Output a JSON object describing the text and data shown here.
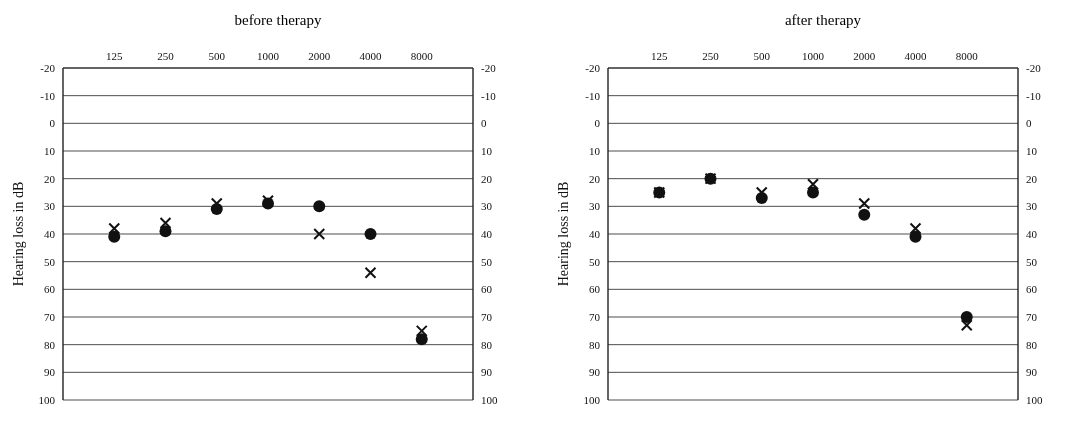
{
  "chart_data": [
    {
      "type": "scatter",
      "title": "before therapy",
      "ylabel": "Hearing loss in dB",
      "categories": [
        "125",
        "250",
        "500",
        "1000",
        "2000",
        "4000",
        "8000"
      ],
      "series": [
        {
          "color": "#111111",
          "marker": "circle",
          "values": [
            41,
            39,
            31,
            29,
            30,
            40,
            78
          ]
        },
        {
          "color": "#111111",
          "marker": "cross",
          "values": [
            38,
            36,
            29,
            28,
            40,
            54,
            75
          ]
        }
      ],
      "ylim": [
        100,
        -20
      ],
      "yticks": [
        -20,
        -10,
        0,
        10,
        20,
        30,
        40,
        50,
        60,
        70,
        80,
        90,
        100
      ],
      "y2lim": [
        100,
        -20
      ],
      "y2ticks": [
        -20,
        -10,
        0,
        10,
        20,
        30,
        40,
        50,
        60,
        70,
        80,
        90,
        100
      ],
      "grid": true
    },
    {
      "type": "scatter",
      "title": "after therapy",
      "ylabel": "Hearing loss in dB",
      "categories": [
        "125",
        "250",
        "500",
        "1000",
        "2000",
        "4000",
        "8000"
      ],
      "series": [
        {
          "color": "#111111",
          "marker": "circle",
          "values": [
            25,
            20,
            27,
            25,
            33,
            41,
            70
          ]
        },
        {
          "color": "#111111",
          "marker": "cross",
          "values": [
            25,
            20,
            25,
            22,
            29,
            38,
            73
          ]
        }
      ],
      "ylim": [
        100,
        -20
      ],
      "yticks": [
        -20,
        -10,
        0,
        10,
        20,
        30,
        40,
        50,
        60,
        70,
        80,
        90,
        100
      ],
      "y2lim": [
        100,
        -20
      ],
      "y2ticks": [
        -20,
        -10,
        0,
        10,
        20,
        30,
        40,
        50,
        60,
        70,
        80,
        90,
        100
      ],
      "grid": true
    }
  ]
}
